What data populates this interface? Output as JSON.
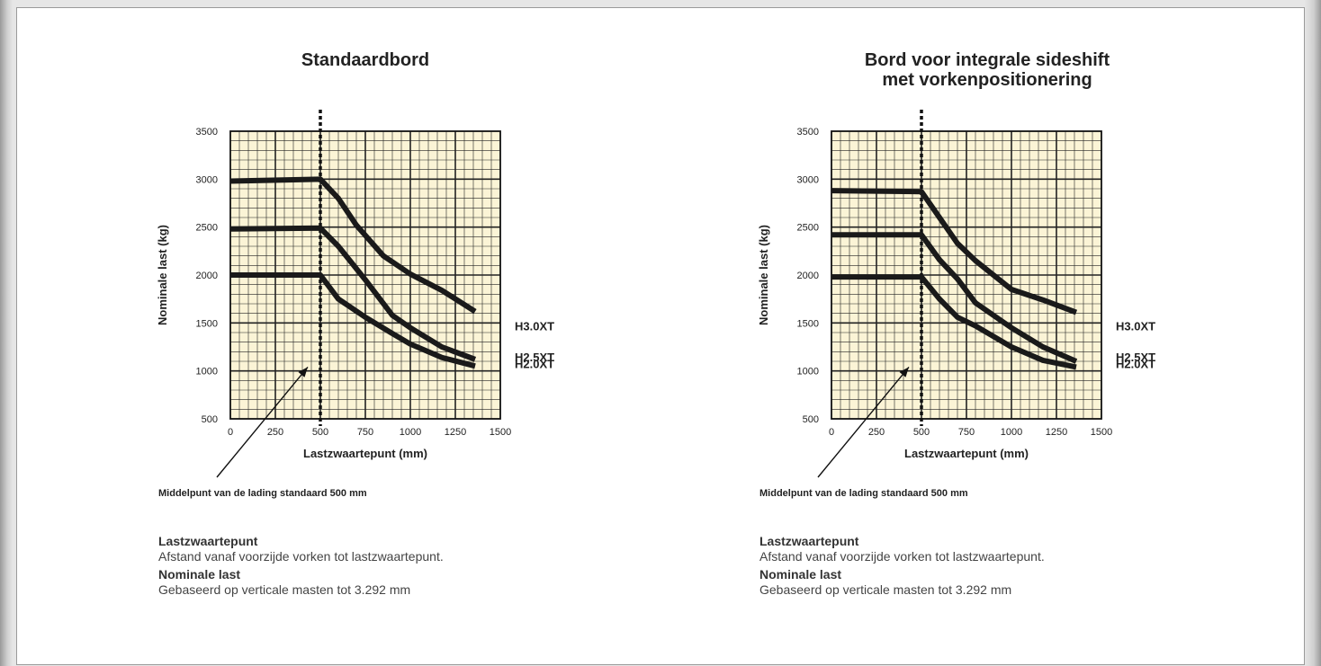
{
  "charts": [
    {
      "title_lines": [
        "Standaardbord"
      ],
      "annotation": "Middelpunt van de lading standaard 500 mm",
      "notes": [
        {
          "heading": "Lastzwaartepunt",
          "text": "Afstand vanaf voorzijde vorken tot lastzwaartepunt."
        },
        {
          "heading": "Nominale last",
          "text": "Gebaseerd op verticale masten tot 3.292 mm"
        }
      ]
    },
    {
      "title_lines": [
        "Bord voor integrale sideshift",
        "met vorkenpositionering"
      ],
      "annotation": "Middelpunt van de lading standaard 500 mm",
      "notes": [
        {
          "heading": "Lastzwaartepunt",
          "text": "Afstand vanaf voorzijde vorken tot lastzwaartepunt."
        },
        {
          "heading": "Nominale last",
          "text": "Gebaseerd op verticale masten tot 3.292 mm"
        }
      ]
    }
  ],
  "chart_data": [
    {
      "type": "line",
      "title": "Standaardbord",
      "xlabel": "Lastzwaartepunt (mm)",
      "ylabel": "Nominale last (kg)",
      "xlim": [
        0,
        1500
      ],
      "ylim": [
        500,
        3500
      ],
      "xticks": [
        0,
        250,
        500,
        750,
        1000,
        1250,
        1500
      ],
      "yticks": [
        500,
        1000,
        1500,
        2000,
        2500,
        3000,
        3500
      ],
      "reference_line_x": 500,
      "grid": true,
      "colors": {
        "grid_fill": "#fbf4d6",
        "line": "#1a1a1a"
      },
      "series": [
        {
          "name": "H3.0XT",
          "x": [
            0,
            500,
            600,
            700,
            850,
            1000,
            1175,
            1360
          ],
          "y": [
            2980,
            3000,
            2800,
            2520,
            2200,
            2010,
            1840,
            1620
          ]
        },
        {
          "name": "H2.5XT",
          "x": [
            0,
            500,
            600,
            750,
            900,
            1000,
            1175,
            1360
          ],
          "y": [
            2480,
            2490,
            2300,
            1950,
            1580,
            1450,
            1250,
            1120
          ]
        },
        {
          "name": "H2.0XT",
          "x": [
            0,
            500,
            600,
            750,
            900,
            1000,
            1175,
            1360
          ],
          "y": [
            2000,
            2000,
            1750,
            1560,
            1390,
            1280,
            1140,
            1050
          ]
        }
      ]
    },
    {
      "type": "line",
      "title": "Bord voor integrale sideshift met vorkenpositionering",
      "xlabel": "Lastzwaartepunt (mm)",
      "ylabel": "Nominale last (kg)",
      "xlim": [
        0,
        1500
      ],
      "ylim": [
        500,
        3500
      ],
      "xticks": [
        0,
        250,
        500,
        750,
        1000,
        1250,
        1500
      ],
      "yticks": [
        500,
        1000,
        1500,
        2000,
        2500,
        3000,
        3500
      ],
      "reference_line_x": 500,
      "grid": true,
      "colors": {
        "grid_fill": "#fbf4d6",
        "line": "#1a1a1a"
      },
      "series": [
        {
          "name": "H3.0XT",
          "x": [
            0,
            500,
            600,
            700,
            800,
            1000,
            1175,
            1360
          ],
          "y": [
            2880,
            2870,
            2600,
            2330,
            2150,
            1850,
            1740,
            1610
          ]
        },
        {
          "name": "H2.5XT",
          "x": [
            0,
            500,
            600,
            700,
            800,
            1000,
            1175,
            1360
          ],
          "y": [
            2420,
            2420,
            2160,
            1960,
            1710,
            1450,
            1250,
            1100
          ]
        },
        {
          "name": "H2.0XT",
          "x": [
            0,
            500,
            600,
            700,
            800,
            1000,
            1175,
            1360
          ],
          "y": [
            1980,
            1980,
            1750,
            1560,
            1470,
            1250,
            1110,
            1040
          ]
        }
      ]
    }
  ]
}
